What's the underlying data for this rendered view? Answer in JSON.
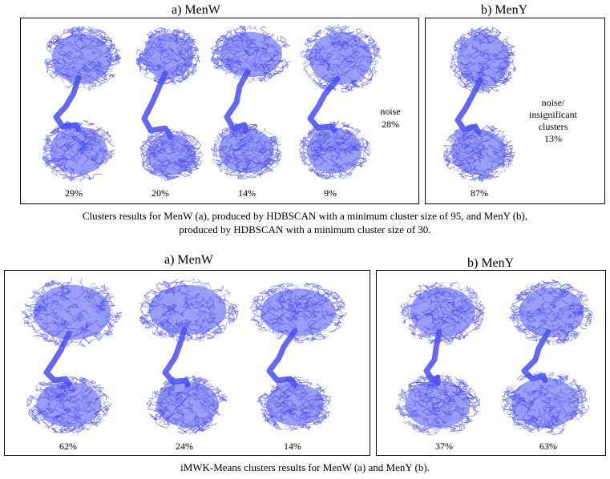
{
  "top": {
    "menw": {
      "title": "a) MenW",
      "clusters": [
        "29%",
        "20%",
        "14%",
        "9%"
      ],
      "noise_label": "noise",
      "noise_value": "28%"
    },
    "meny": {
      "title": "b) MenY",
      "clusters": [
        "87%"
      ],
      "noise_lines": [
        "noise/",
        "insignificant",
        "clusters",
        "13%"
      ]
    },
    "caption_line1": "Clusters results for MenW (a), produced by HDBSCAN with a minimum cluster size of 95, and MenY (b),",
    "caption_line2": "produced by HDBSCAN with a minimum cluster size of 30."
  },
  "bottom": {
    "menw": {
      "title": "a) MenW",
      "clusters": [
        "62%",
        "24%",
        "14%"
      ]
    },
    "meny": {
      "title": "b) MenY",
      "clusters": [
        "37%",
        "63%"
      ]
    },
    "caption": "iMWK-Means clusters results for MenW (a) and MenY (b)."
  },
  "colors": {
    "ensemble": "#4a4ff0",
    "ensemble_light": "#8a8ef6"
  }
}
